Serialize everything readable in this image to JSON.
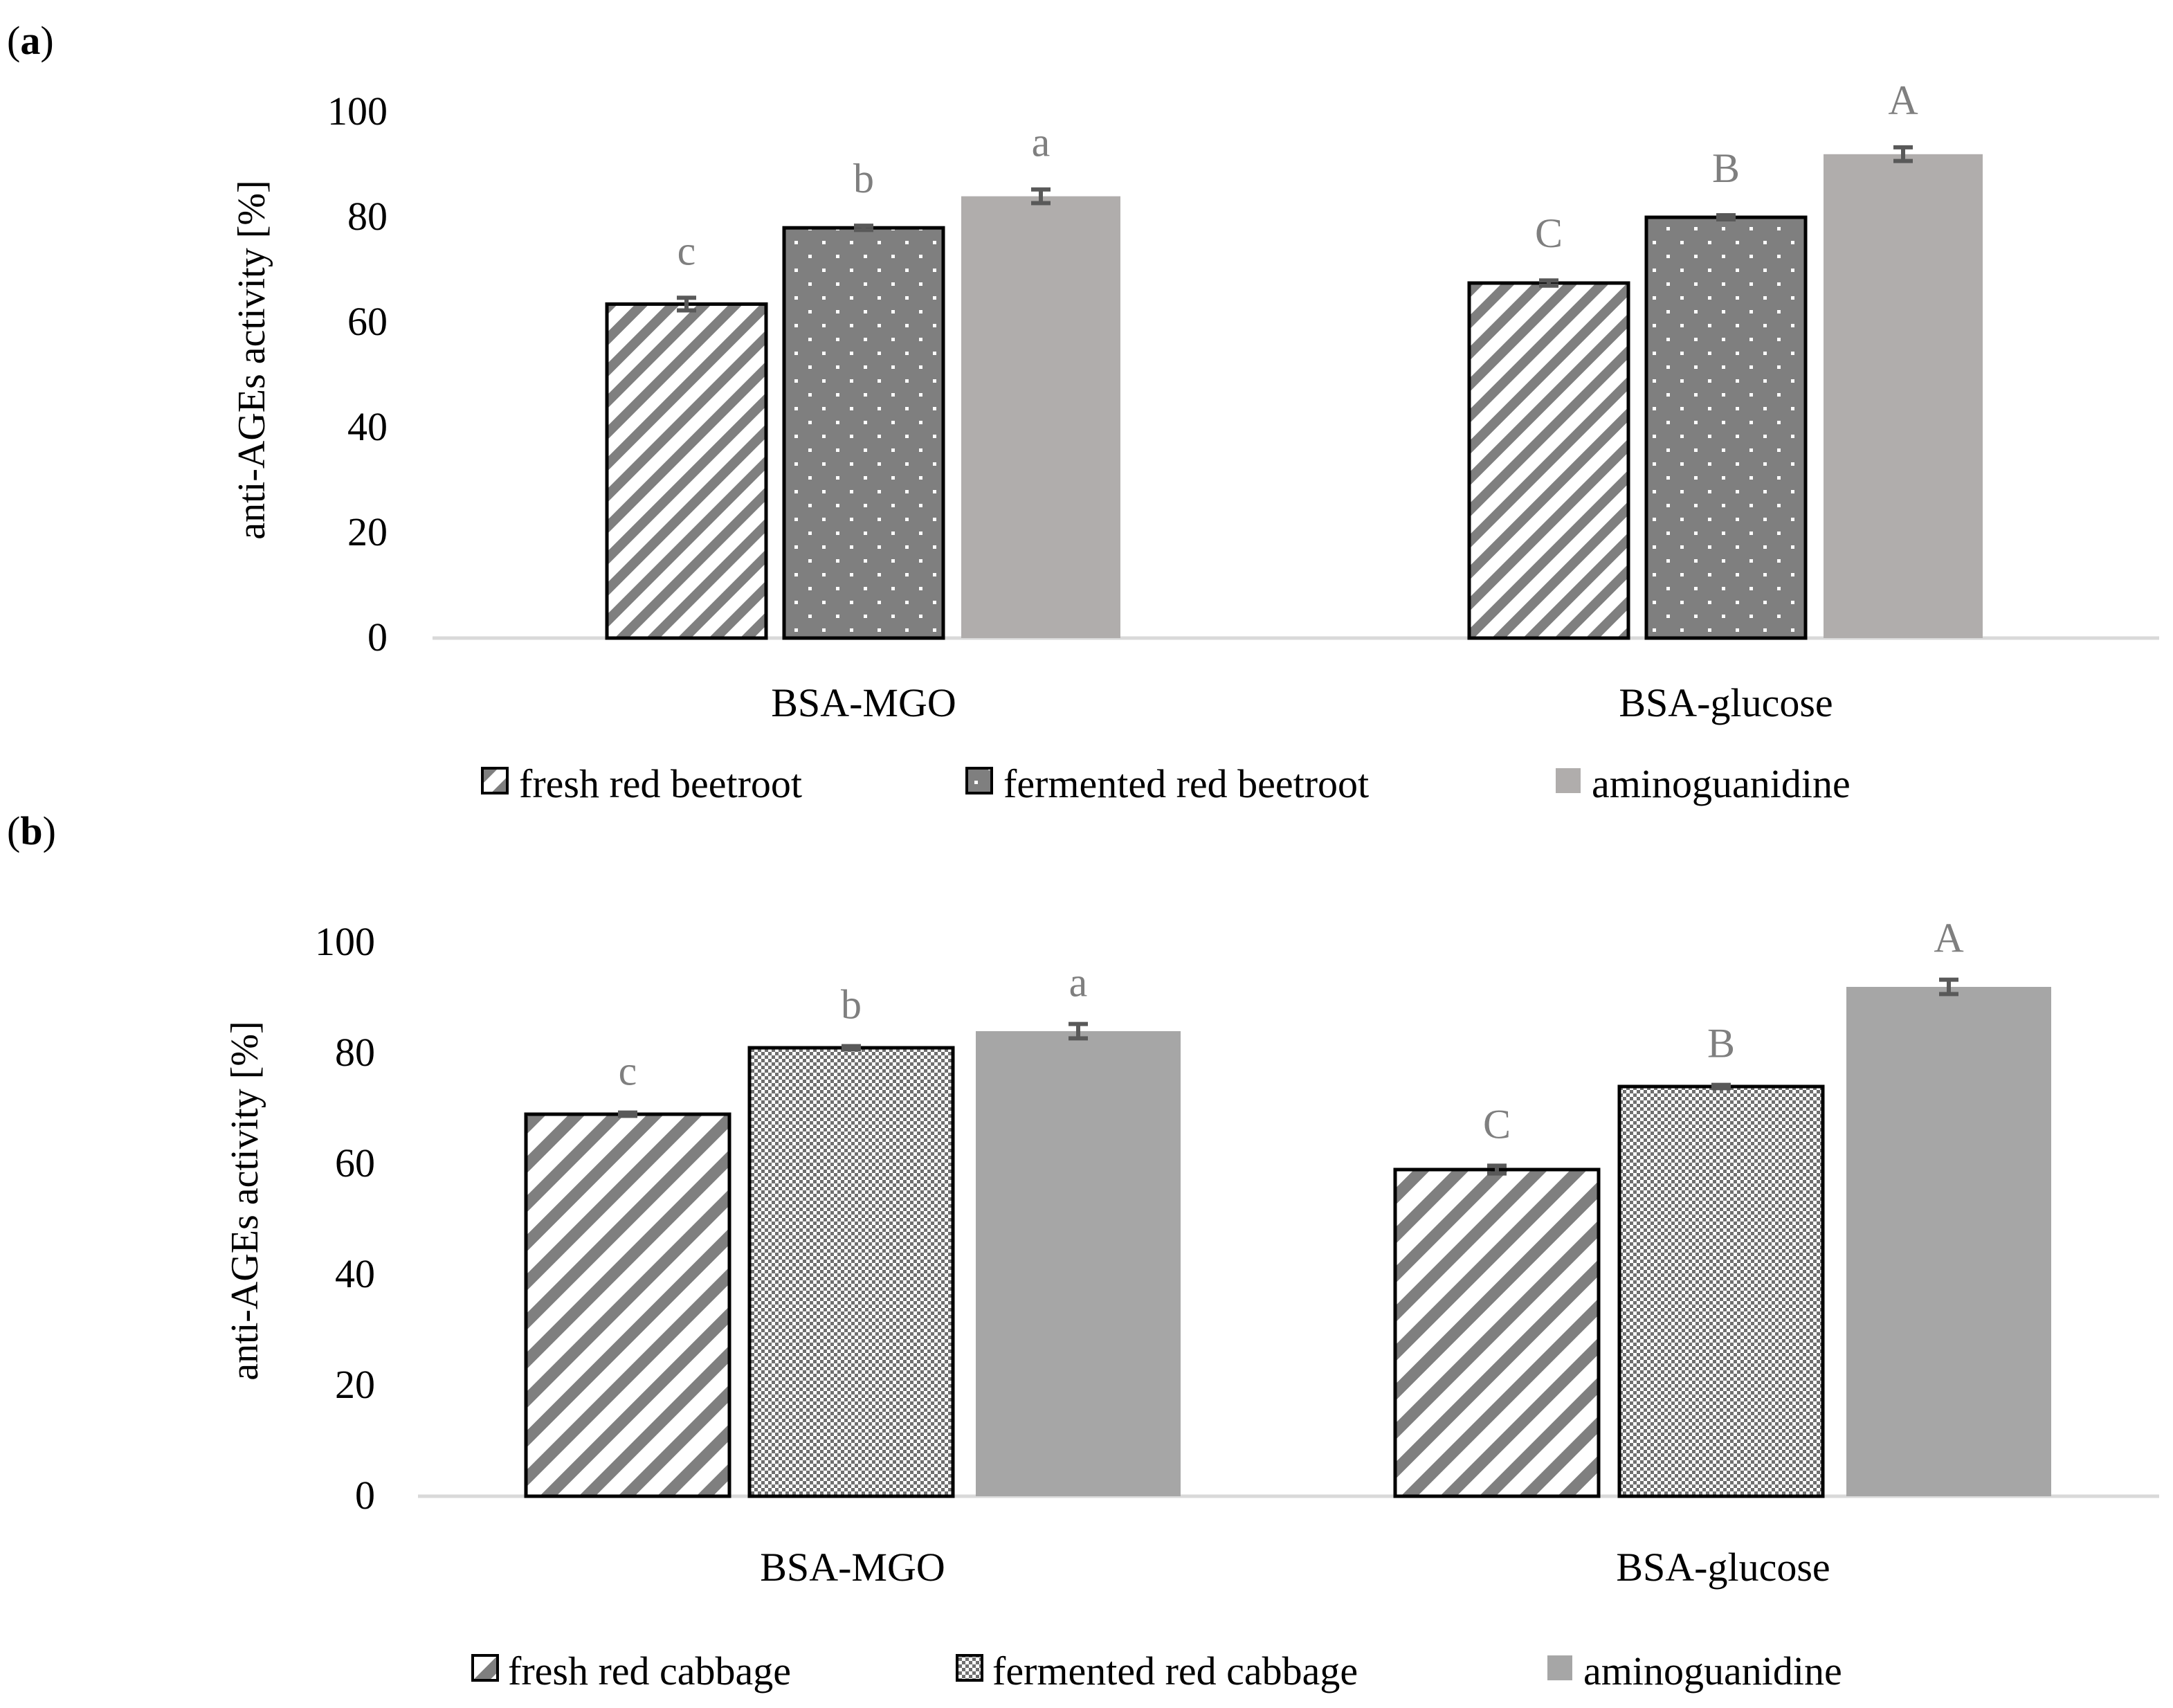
{
  "chart_data": [
    {
      "type": "bar",
      "panel_label": "a",
      "title": "",
      "xlabel": "",
      "ylabel": "anti-AGEs activity [%]",
      "ylim": [
        0,
        100
      ],
      "yticks": [
        "0",
        "20",
        "40",
        "60",
        "80",
        "100"
      ],
      "grid": false,
      "legend_position": "bottom",
      "categories": [
        "BSA-MGO",
        "BSA-glucose"
      ],
      "series": [
        {
          "name": "fresh red beetroot",
          "values": [
            63.5,
            67.5
          ],
          "errors": [
            1.2,
            0.5
          ],
          "letters": [
            "c",
            "C"
          ],
          "pattern": "diag-fine"
        },
        {
          "name": "fermented red beetroot",
          "values": [
            78,
            80
          ],
          "errors": [
            0.4,
            0.4
          ],
          "letters": [
            "b",
            "B"
          ],
          "pattern": "dots-dark"
        },
        {
          "name": "aminoguanidine",
          "values": [
            84,
            92
          ],
          "errors": [
            1.3,
            1.3
          ],
          "letters": [
            "a",
            "A"
          ],
          "pattern": "solid-light"
        }
      ]
    },
    {
      "type": "bar",
      "panel_label": "b",
      "title": "",
      "xlabel": "",
      "ylabel": "anti-AGEs activity [%]",
      "ylim": [
        0,
        100
      ],
      "yticks": [
        "0",
        "20",
        "40",
        "60",
        "80",
        "100"
      ],
      "grid": false,
      "legend_position": "bottom",
      "categories": [
        "BSA-MGO",
        "BSA-glucose"
      ],
      "series": [
        {
          "name": "fresh red cabbage",
          "values": [
            69,
            59
          ],
          "errors": [
            0.3,
            0.7
          ],
          "letters": [
            "c",
            "C"
          ],
          "pattern": "diag-wide"
        },
        {
          "name": "fermented red cabbage",
          "values": [
            81,
            74
          ],
          "errors": [
            0.3,
            0.3
          ],
          "letters": [
            "b",
            "B"
          ],
          "pattern": "checker"
        },
        {
          "name": "aminoguanidine",
          "values": [
            84,
            92
          ],
          "errors": [
            1.3,
            1.3
          ],
          "letters": [
            "a",
            "A"
          ],
          "pattern": "solid-mid"
        }
      ]
    }
  ],
  "colors": {
    "axis": "#d9d9d9",
    "stripe": "#7f7f7f",
    "dotted_bar": "#7f7f7f",
    "aminoguanidine_a": "#b0adac",
    "aminoguanidine_b": "#a6a6a6",
    "letter_text": "#7f7f7f",
    "error_bar": "#595959"
  }
}
